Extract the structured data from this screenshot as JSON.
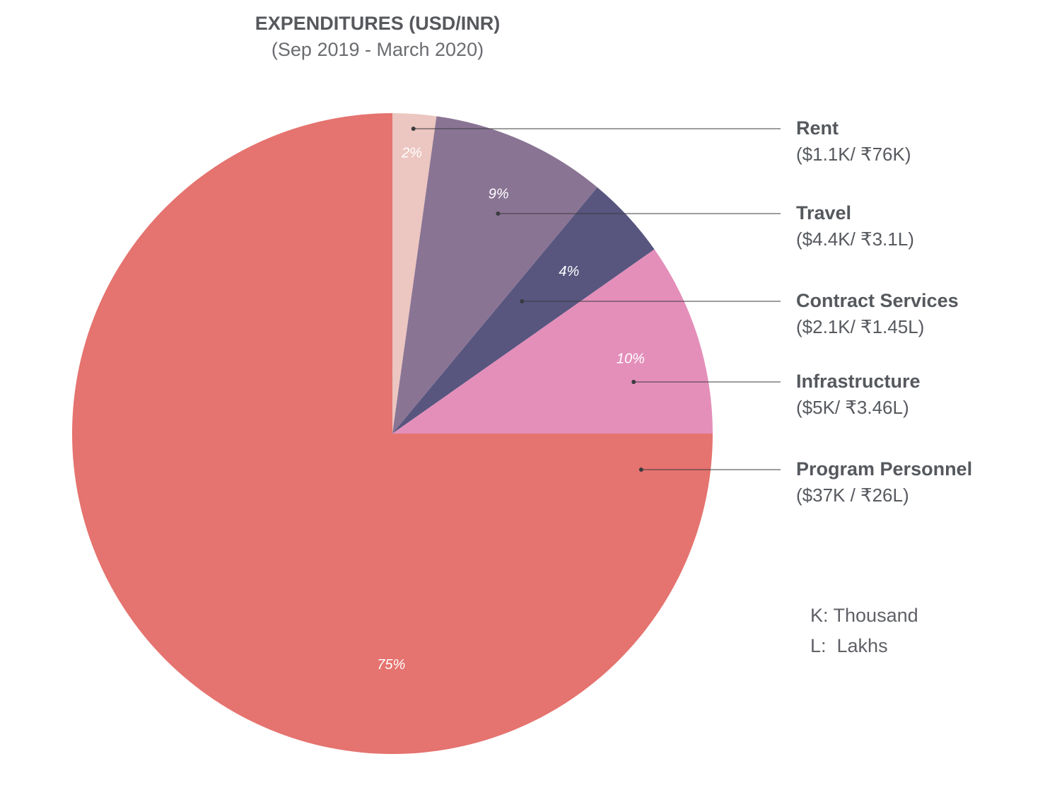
{
  "chart_data": {
    "type": "pie",
    "title": "EXPENDITURES (USD/INR)",
    "subtitle": "(Sep 2019 - March 2020)",
    "slices": [
      {
        "name": "Rent",
        "amount": "($1.1K/ ₹76K)",
        "value": 2.2,
        "pct_label": "2%",
        "color": "#ecc6c0"
      },
      {
        "name": "Travel",
        "amount": "($4.4K/ ₹3.1L)",
        "value": 8.85,
        "pct_label": "9%",
        "color": "#8a7494"
      },
      {
        "name": "Contract Services",
        "amount": "($2.1K/ ₹1.45L)",
        "value": 4.2,
        "pct_label": "4%",
        "color": "#58567f"
      },
      {
        "name": "Infrastructure",
        "amount": "($5K/ ₹3.46L)",
        "value": 9.75,
        "pct_label": "10%",
        "color": "#e48fba"
      },
      {
        "name": "Program Personnel",
        "amount": "($37K / ₹26L)",
        "value": 75,
        "pct_label": "75%",
        "color": "#e5736f"
      }
    ],
    "start_angle": "12 o'clock",
    "direction": "clockwise",
    "legend_placement": "right",
    "notes": [
      "K: Thousand",
      "L:  Lakhs"
    ]
  }
}
